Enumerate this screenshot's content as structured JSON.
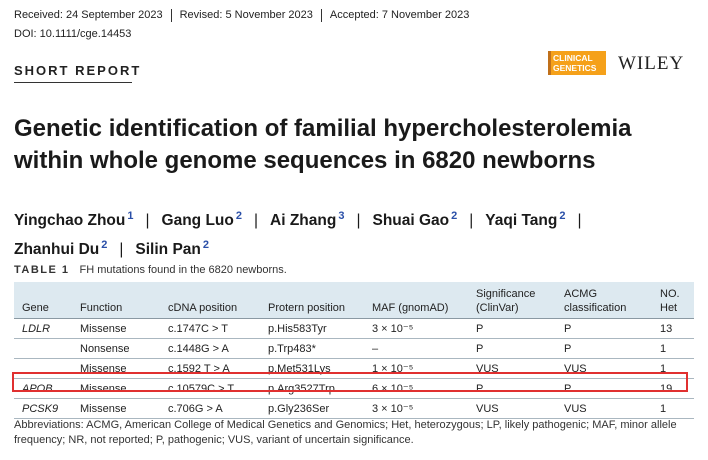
{
  "meta": {
    "received": "Received: 24 September 2023",
    "revised": "Revised: 5 November 2023",
    "accepted": "Accepted: 7 November 2023",
    "doi": "DOI: 10.1111/cge.14453"
  },
  "header": {
    "section": "SHORT REPORT",
    "journal_logo_line1": "CLINICAL",
    "journal_logo_line2": "GENETICS",
    "publisher": "WILEY",
    "colors": {
      "journal_logo": "#f5a11a"
    }
  },
  "title": "Genetic identification of familial hypercholesterolemia within whole genome sequences in 6820 newborns",
  "authors": [
    {
      "name": "Yingchao Zhou",
      "aff": "1"
    },
    {
      "name": "Gang Luo",
      "aff": "2"
    },
    {
      "name": "Ai Zhang",
      "aff": "3"
    },
    {
      "name": "Shuai Gao",
      "aff": "2"
    },
    {
      "name": "Yaqi Tang",
      "aff": "2"
    },
    {
      "name": "Zhanhui Du",
      "aff": "2"
    },
    {
      "name": "Silin Pan",
      "aff": "2"
    }
  ],
  "table": {
    "label": "TABLE 1",
    "caption": "FH mutations found in the 6820 newborns.",
    "headers": [
      "Gene",
      "Function",
      "cDNA position",
      "Protern position",
      "MAF (gnomAD)",
      "Significance (ClinVar)",
      "ACMG classification",
      "NO. Het"
    ],
    "rows": [
      [
        "LDLR",
        "Missense",
        "c.1747C > T",
        "p.His583Tyr",
        "3 × 10⁻⁵",
        "P",
        "P",
        "13"
      ],
      [
        "",
        "Nonsense",
        "c.1448G > A",
        "p.Trp483*",
        "–",
        "P",
        "P",
        "1"
      ],
      [
        "",
        "Missense",
        "c.1592 T > A",
        "p.Met531Lys",
        "1 × 10⁻⁵",
        "VUS",
        "VUS",
        "1"
      ],
      [
        "APOB",
        "Missense",
        "c.10579C > T",
        "p.Arg3527Trp",
        "6 × 10⁻⁵",
        "P",
        "P",
        "19"
      ],
      [
        "PCSK9",
        "Missense",
        "c.706G > A",
        "p.Gly236Ser",
        "3 × 10⁻⁵",
        "VUS",
        "VUS",
        "1"
      ]
    ],
    "highlight_row": 3
  },
  "abbreviations": "Abbreviations: ACMG, American College of Medical Genetics and Genomics; Het, heterozygous; LP, likely pathogenic; MAF, minor allele frequency; NR, not reported; P, pathogenic; VUS, variant of uncertain significance."
}
